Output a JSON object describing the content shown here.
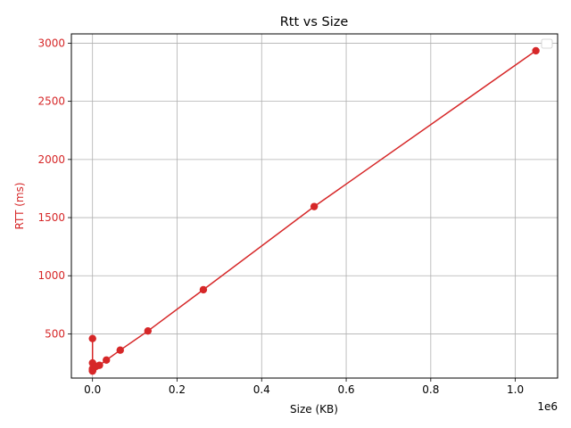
{
  "chart_data": {
    "type": "line",
    "title": "Rtt vs Size",
    "xlabel": "Size (KB)",
    "ylabel": "RTT (ms)",
    "x_offset_label": "1e6",
    "xlim": [
      -50000,
      1100000
    ],
    "ylim": [
      120,
      3080
    ],
    "x_ticks": [
      0,
      200000,
      400000,
      600000,
      800000,
      1000000
    ],
    "x_tick_labels": [
      "0.0",
      "0.2",
      "0.4",
      "0.6",
      "0.8",
      "1.0"
    ],
    "y_ticks": [
      500,
      1000,
      1500,
      2000,
      2500,
      3000
    ],
    "y_tick_labels": [
      "500",
      "1000",
      "1500",
      "2000",
      "2500",
      "3000"
    ],
    "grid": true,
    "legend_placement": "top-right",
    "color": "#d62728",
    "series": [
      {
        "x": [
          1,
          2,
          4,
          8,
          16,
          32,
          64,
          128,
          256,
          512,
          1024,
          2048,
          4096,
          8192,
          16384,
          32768,
          65536,
          131072,
          262144,
          524288,
          1048576
        ],
        "y": [
          460,
          190,
          180,
          185,
          200,
          250,
          195,
          185,
          190,
          200,
          195,
          210,
          215,
          220,
          230,
          275,
          360,
          525,
          880,
          1595,
          2935
        ]
      }
    ]
  }
}
